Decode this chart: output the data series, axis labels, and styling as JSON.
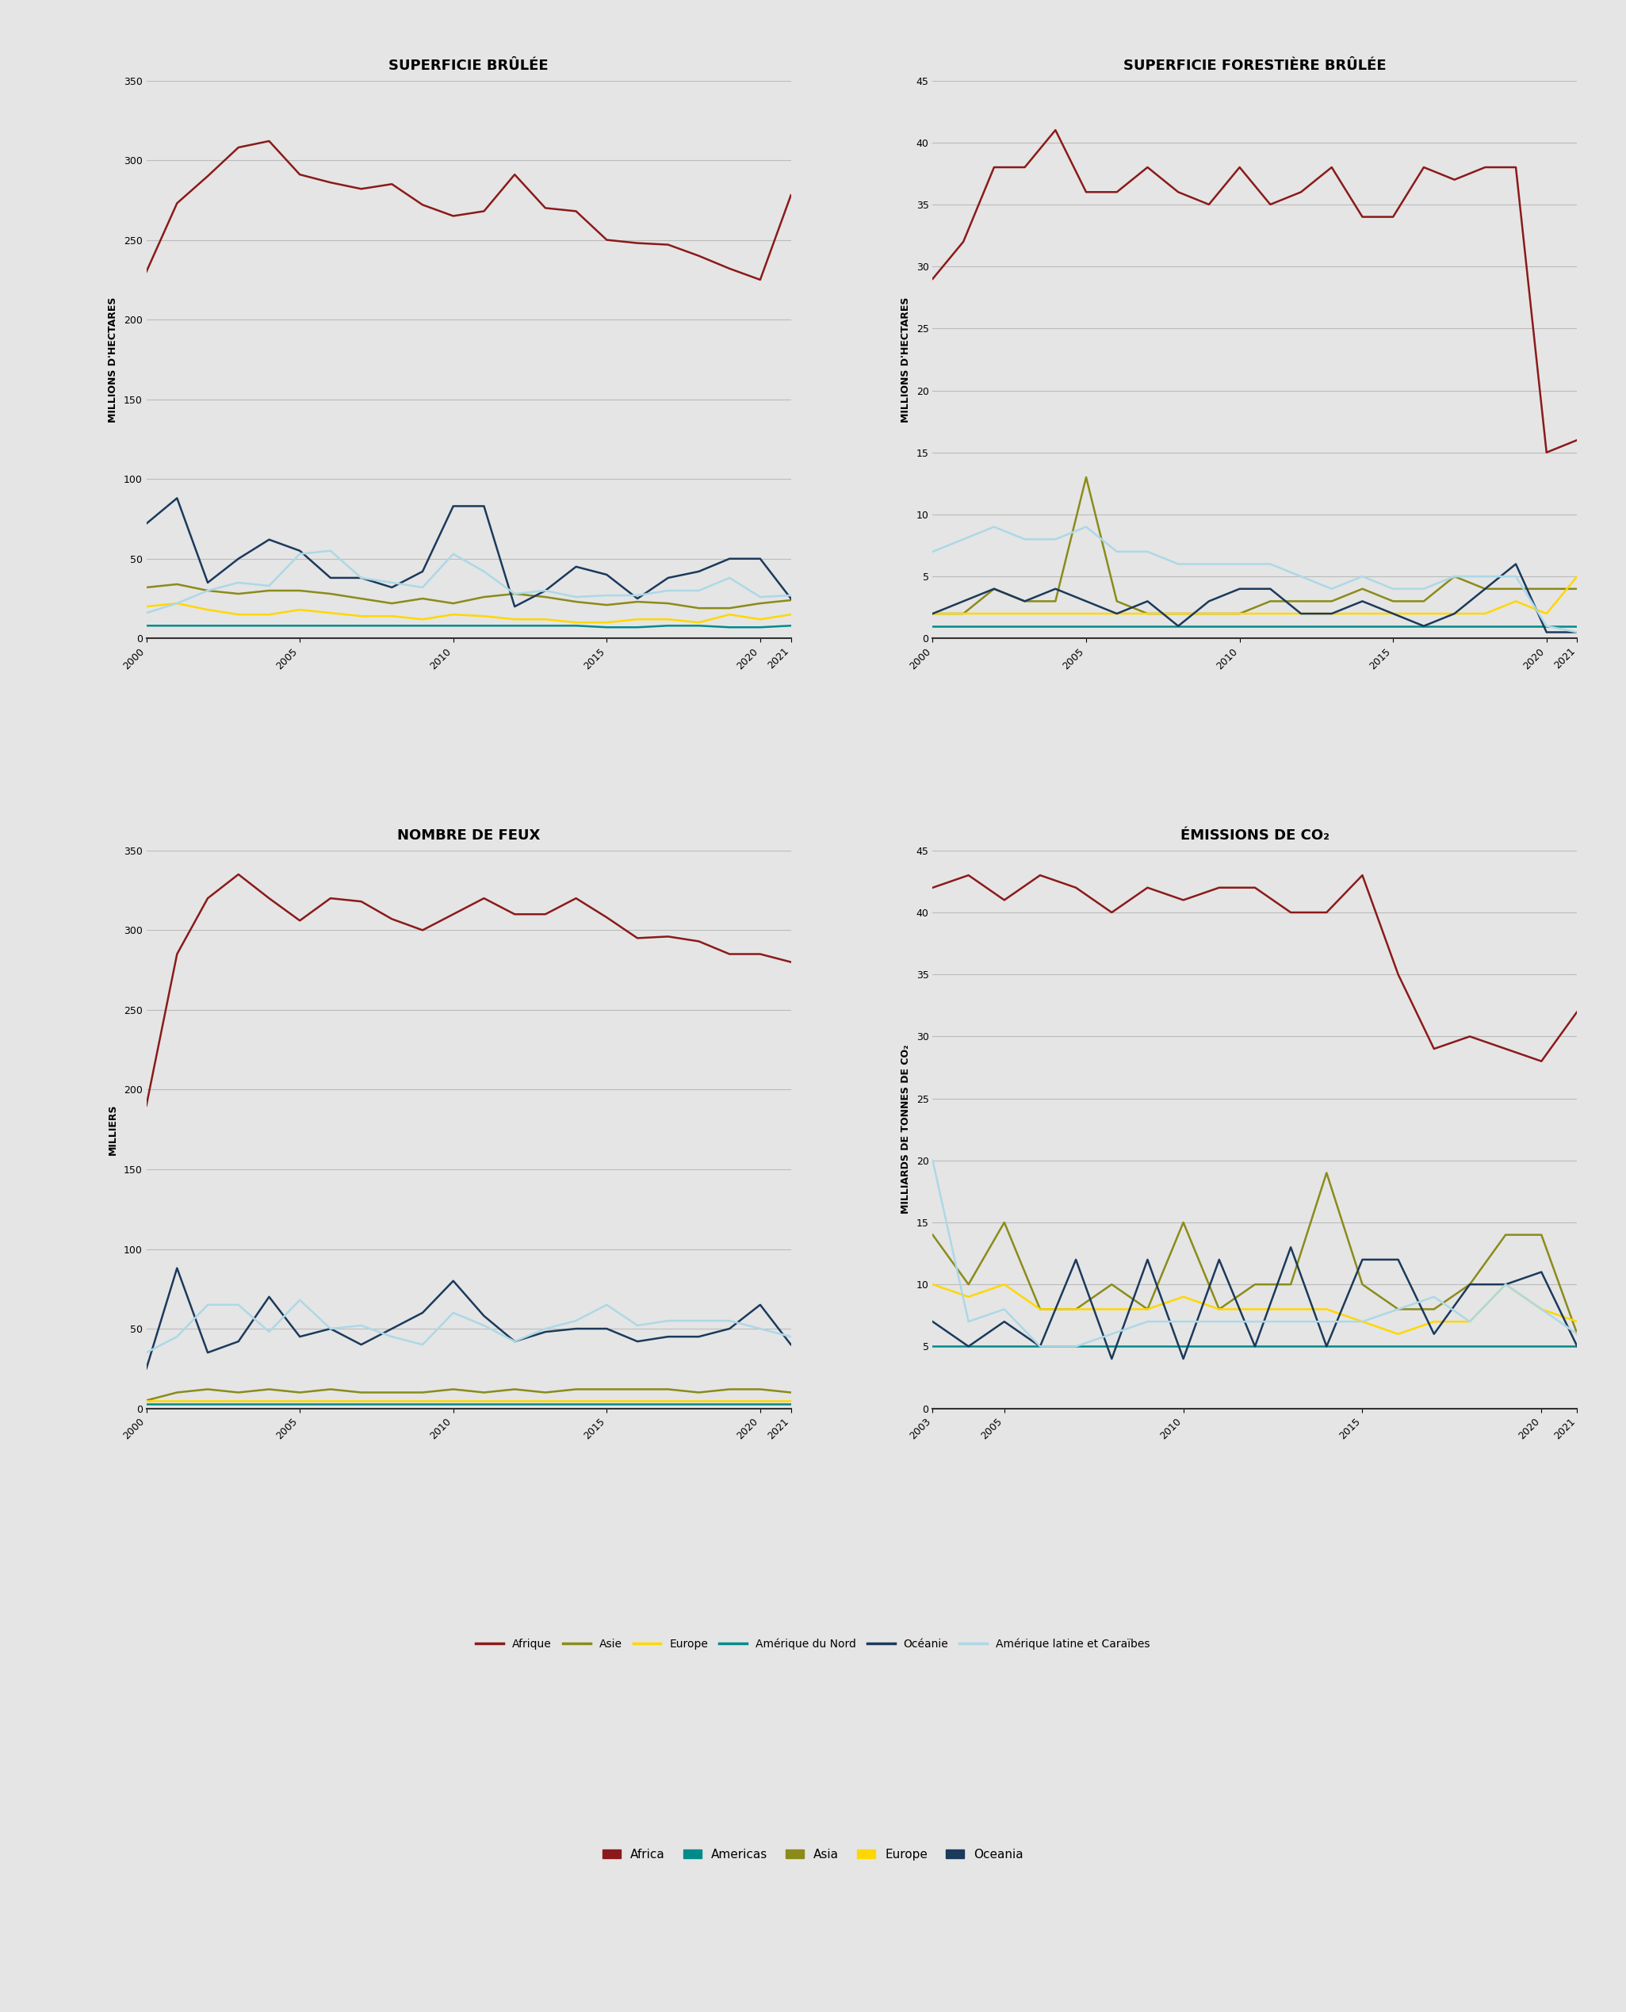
{
  "background_color": "#e5e5e5",
  "title_fontsize": 13,
  "axis_label_fontsize": 9,
  "tick_fontsize": 9,
  "colors": {
    "afrique": "#8B1A1A",
    "asie": "#8B8B1A",
    "europe": "#FFD700",
    "amerique_nord": "#008B8B",
    "oceanie": "#1B3A5C",
    "amerique_latine": "#ADD8E6"
  },
  "superficie_brulee": {
    "title": "SUPERFICIE BRÛLÉE",
    "ylabel": "MILLIONS D'HECTARES",
    "ylim": [
      0,
      350
    ],
    "yticks": [
      0,
      50,
      100,
      150,
      200,
      250,
      300,
      350
    ],
    "years": [
      2000,
      2001,
      2002,
      2003,
      2004,
      2005,
      2006,
      2007,
      2008,
      2009,
      2010,
      2011,
      2012,
      2013,
      2014,
      2015,
      2016,
      2017,
      2018,
      2019,
      2020,
      2021
    ],
    "afrique": [
      230,
      273,
      290,
      308,
      312,
      291,
      286,
      282,
      285,
      272,
      265,
      268,
      291,
      270,
      268,
      250,
      248,
      247,
      240,
      232,
      225,
      278
    ],
    "asie": [
      32,
      34,
      30,
      28,
      30,
      30,
      28,
      25,
      22,
      25,
      22,
      26,
      28,
      26,
      23,
      21,
      23,
      22,
      19,
      19,
      22,
      24
    ],
    "europe": [
      20,
      22,
      18,
      15,
      15,
      18,
      16,
      14,
      14,
      12,
      15,
      14,
      12,
      12,
      10,
      10,
      12,
      12,
      10,
      15,
      12,
      15
    ],
    "amerique_nord": [
      8,
      8,
      8,
      8,
      8,
      8,
      8,
      8,
      8,
      8,
      8,
      8,
      8,
      8,
      8,
      7,
      7,
      8,
      8,
      7,
      7,
      8
    ],
    "oceanie": [
      72,
      88,
      35,
      50,
      62,
      55,
      38,
      38,
      32,
      42,
      83,
      83,
      20,
      30,
      45,
      40,
      25,
      38,
      42,
      50,
      50,
      25
    ],
    "amerique_latine": [
      16,
      22,
      30,
      35,
      33,
      53,
      55,
      38,
      35,
      32,
      53,
      42,
      28,
      30,
      26,
      27,
      27,
      30,
      30,
      38,
      26,
      27
    ]
  },
  "superficie_forestiere": {
    "title": "SUPERFICIE FORESTIÈRE BRÛLÉE",
    "ylabel": "MILLIONS D'HECTARES",
    "ylim": [
      0,
      45
    ],
    "yticks": [
      0,
      5,
      10,
      15,
      20,
      25,
      30,
      35,
      40,
      45
    ],
    "years": [
      2000,
      2001,
      2002,
      2003,
      2004,
      2005,
      2006,
      2007,
      2008,
      2009,
      2010,
      2011,
      2012,
      2013,
      2014,
      2015,
      2016,
      2017,
      2018,
      2019,
      2020,
      2021
    ],
    "afrique": [
      29,
      32,
      38,
      38,
      41,
      36,
      36,
      38,
      36,
      35,
      38,
      35,
      36,
      38,
      34,
      34,
      38,
      37,
      38,
      38,
      15,
      16
    ],
    "asie": [
      2,
      2,
      4,
      3,
      3,
      13,
      3,
      2,
      2,
      2,
      2,
      3,
      3,
      3,
      4,
      3,
      3,
      5,
      4,
      4,
      4,
      4
    ],
    "europe": [
      2,
      2,
      2,
      2,
      2,
      2,
      2,
      2,
      2,
      2,
      2,
      2,
      2,
      2,
      2,
      2,
      2,
      2,
      2,
      3,
      2,
      5
    ],
    "amerique_nord": [
      1,
      1,
      1,
      1,
      1,
      1,
      1,
      1,
      1,
      1,
      1,
      1,
      1,
      1,
      1,
      1,
      1,
      1,
      1,
      1,
      1,
      1
    ],
    "oceanie": [
      2,
      3,
      4,
      3,
      4,
      3,
      2,
      3,
      1,
      3,
      4,
      4,
      2,
      2,
      3,
      2,
      1,
      2,
      4,
      6,
      0.5,
      0.5
    ],
    "amerique_latine": [
      7,
      8,
      9,
      8,
      8,
      9,
      7,
      7,
      6,
      6,
      6,
      6,
      5,
      4,
      5,
      4,
      4,
      5,
      5,
      5,
      1,
      0.5
    ]
  },
  "nombre_feux": {
    "title": "NOMBRE DE FEUX",
    "ylabel": "MILLIERS",
    "ylim": [
      0,
      350
    ],
    "yticks": [
      0,
      50,
      100,
      150,
      200,
      250,
      300,
      350
    ],
    "years": [
      2000,
      2001,
      2002,
      2003,
      2004,
      2005,
      2006,
      2007,
      2008,
      2009,
      2010,
      2011,
      2012,
      2013,
      2014,
      2015,
      2016,
      2017,
      2018,
      2019,
      2020,
      2021
    ],
    "afrique": [
      190,
      285,
      320,
      335,
      320,
      306,
      320,
      318,
      307,
      300,
      310,
      320,
      310,
      310,
      320,
      308,
      295,
      296,
      293,
      285,
      285,
      280
    ],
    "asie": [
      5,
      10,
      12,
      10,
      12,
      10,
      12,
      10,
      10,
      10,
      12,
      10,
      12,
      10,
      12,
      12,
      12,
      12,
      10,
      12,
      12,
      10
    ],
    "europe": [
      5,
      5,
      5,
      5,
      5,
      5,
      5,
      5,
      5,
      5,
      5,
      5,
      5,
      5,
      5,
      5,
      5,
      5,
      5,
      5,
      5,
      5
    ],
    "amerique_nord": [
      3,
      3,
      3,
      3,
      3,
      3,
      3,
      3,
      3,
      3,
      3,
      3,
      3,
      3,
      3,
      3,
      3,
      3,
      3,
      3,
      3,
      3
    ],
    "oceanie": [
      25,
      88,
      35,
      42,
      70,
      45,
      50,
      40,
      50,
      60,
      80,
      58,
      42,
      48,
      50,
      50,
      42,
      45,
      45,
      50,
      65,
      40
    ],
    "amerique_latine": [
      35,
      45,
      65,
      65,
      48,
      68,
      50,
      52,
      45,
      40,
      60,
      52,
      42,
      50,
      55,
      65,
      52,
      55,
      55,
      55,
      50,
      45
    ]
  },
  "emissions_co2": {
    "title": "ÉMISSIONS DE CO₂",
    "ylabel": "MILLIARDS DE TONNES DE CO₂",
    "ylim": [
      0,
      45
    ],
    "yticks": [
      0,
      5,
      10,
      15,
      20,
      25,
      30,
      35,
      40,
      45
    ],
    "years": [
      2003,
      2004,
      2005,
      2006,
      2007,
      2008,
      2009,
      2010,
      2011,
      2012,
      2013,
      2014,
      2015,
      2016,
      2017,
      2018,
      2019,
      2020,
      2021
    ],
    "afrique": [
      42,
      43,
      41,
      43,
      42,
      40,
      42,
      41,
      42,
      42,
      40,
      40,
      43,
      35,
      29,
      30,
      29,
      28,
      32
    ],
    "asie": [
      14,
      10,
      15,
      8,
      8,
      10,
      8,
      15,
      8,
      10,
      10,
      19,
      10,
      8,
      8,
      10,
      14,
      14,
      6
    ],
    "europe": [
      10,
      9,
      10,
      8,
      8,
      8,
      8,
      9,
      8,
      8,
      8,
      8,
      7,
      6,
      7,
      7,
      10,
      8,
      7
    ],
    "amerique_nord": [
      5,
      5,
      5,
      5,
      5,
      5,
      5,
      5,
      5,
      5,
      5,
      5,
      5,
      5,
      5,
      5,
      5,
      5,
      5
    ],
    "oceanie": [
      7,
      5,
      7,
      5,
      12,
      4,
      12,
      4,
      12,
      5,
      13,
      5,
      12,
      12,
      6,
      10,
      10,
      11,
      5
    ],
    "amerique_latine": [
      20,
      7,
      8,
      5,
      5,
      6,
      7,
      7,
      7,
      7,
      7,
      7,
      7,
      8,
      9,
      7,
      10,
      8,
      6
    ]
  },
  "legend1": {
    "labels": [
      "Afrique",
      "Asie",
      "Europe",
      "Amérique du Nord",
      "Océanie",
      "Amérique latine et Caraïbes"
    ],
    "colors": [
      "#8B1A1A",
      "#8B8B1A",
      "#FFD700",
      "#008B8B",
      "#1B3A5C",
      "#ADD8E6"
    ]
  },
  "legend2": {
    "labels": [
      "Africa",
      "Americas",
      "Asia",
      "Europe",
      "Oceania"
    ],
    "colors": [
      "#8B1A1A",
      "#008B8B",
      "#8B8B1A",
      "#FFD700",
      "#1B3A5C"
    ]
  }
}
